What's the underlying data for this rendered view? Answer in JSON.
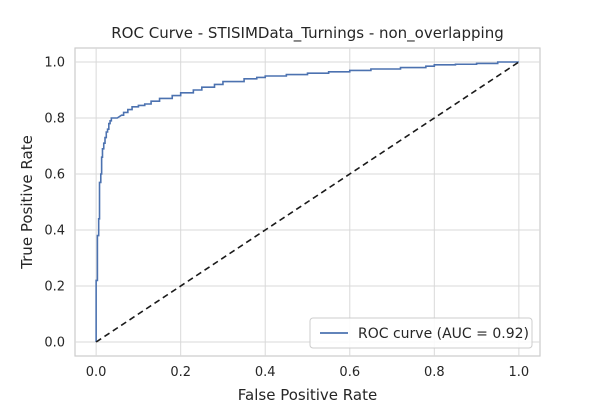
{
  "chart_data": {
    "type": "line",
    "title": "ROC Curve - STISIMData_Turnings - non_overlapping",
    "xlabel": "False Positive Rate",
    "ylabel": "True Positive Rate",
    "xlim": [
      -0.05,
      1.05
    ],
    "ylim": [
      -0.05,
      1.05
    ],
    "xticks": [
      0.0,
      0.2,
      0.4,
      0.6,
      0.8,
      1.0
    ],
    "yticks": [
      0.0,
      0.2,
      0.4,
      0.6,
      0.8,
      1.0
    ],
    "xtick_labels": [
      "0.0",
      "0.2",
      "0.4",
      "0.6",
      "0.8",
      "1.0"
    ],
    "ytick_labels": [
      "0.0",
      "0.2",
      "0.4",
      "0.6",
      "0.8",
      "1.0"
    ],
    "grid": true,
    "legend_position": "lower-right",
    "series": [
      {
        "name": "ROC curve (AUC = 0.92)",
        "color": "#4c72b0",
        "style": "solid",
        "x": [
          0.0,
          0.0,
          0.003,
          0.003,
          0.006,
          0.006,
          0.008,
          0.008,
          0.011,
          0.011,
          0.013,
          0.013,
          0.015,
          0.015,
          0.018,
          0.018,
          0.021,
          0.021,
          0.024,
          0.024,
          0.027,
          0.027,
          0.03,
          0.03,
          0.033,
          0.033,
          0.036,
          0.036,
          0.04,
          0.04,
          0.05,
          0.06,
          0.065,
          0.065,
          0.075,
          0.075,
          0.085,
          0.085,
          0.1,
          0.1,
          0.115,
          0.115,
          0.13,
          0.13,
          0.15,
          0.15,
          0.18,
          0.18,
          0.2,
          0.2,
          0.23,
          0.23,
          0.25,
          0.25,
          0.28,
          0.28,
          0.3,
          0.3,
          0.35,
          0.35,
          0.38,
          0.38,
          0.4,
          0.4,
          0.45,
          0.45,
          0.5,
          0.5,
          0.55,
          0.55,
          0.6,
          0.6,
          0.65,
          0.65,
          0.72,
          0.72,
          0.78,
          0.78,
          0.8,
          0.8,
          0.85,
          0.85,
          0.9,
          0.9,
          0.95,
          0.95,
          1.0
        ],
        "y": [
          0.0,
          0.22,
          0.22,
          0.38,
          0.38,
          0.44,
          0.44,
          0.57,
          0.57,
          0.6,
          0.6,
          0.66,
          0.66,
          0.69,
          0.69,
          0.71,
          0.71,
          0.73,
          0.73,
          0.75,
          0.75,
          0.76,
          0.76,
          0.78,
          0.78,
          0.79,
          0.79,
          0.8,
          0.8,
          0.8,
          0.8,
          0.81,
          0.81,
          0.82,
          0.82,
          0.83,
          0.83,
          0.84,
          0.84,
          0.845,
          0.845,
          0.85,
          0.85,
          0.86,
          0.86,
          0.87,
          0.87,
          0.88,
          0.88,
          0.89,
          0.89,
          0.9,
          0.9,
          0.91,
          0.91,
          0.92,
          0.92,
          0.93,
          0.93,
          0.94,
          0.94,
          0.945,
          0.945,
          0.95,
          0.95,
          0.955,
          0.955,
          0.96,
          0.96,
          0.965,
          0.965,
          0.97,
          0.97,
          0.975,
          0.975,
          0.98,
          0.98,
          0.985,
          0.985,
          0.99,
          0.99,
          0.992,
          0.992,
          0.995,
          0.995,
          1.0,
          1.0
        ]
      },
      {
        "name": "",
        "color": "#1a1a1a",
        "style": "dashed",
        "x": [
          0.0,
          1.0
        ],
        "y": [
          0.0,
          1.0
        ]
      }
    ],
    "legend": [
      {
        "label": "ROC curve (AUC = 0.92)",
        "color": "#4c72b0"
      }
    ]
  }
}
